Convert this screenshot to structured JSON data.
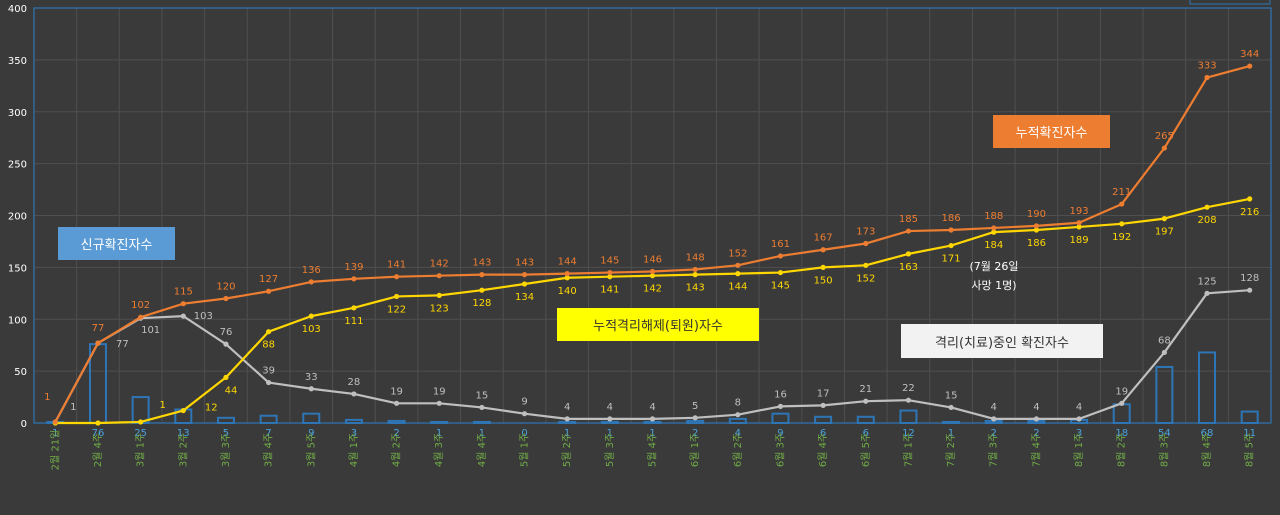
{
  "chart_data": {
    "type": "bar",
    "x_labels": [
      "2월 21일",
      "2월 4주",
      "3월 1주",
      "3월 2주",
      "3월 3주",
      "3월 4주",
      "3월 5주",
      "4월 1주",
      "4월 2주",
      "4월 3주",
      "4월 4주",
      "5월 1주",
      "5월 2주",
      "5월 3주",
      "5월 4주",
      "6월 1주",
      "6월 2주",
      "6월 3주",
      "6월 4주",
      "6월 5주",
      "7월 1주",
      "7월 2주",
      "7월 3주",
      "7월 4주",
      "8월 1주",
      "8월 2주",
      "8월 3주",
      "8월 4주",
      "8월 5주"
    ],
    "ylim": [
      0,
      400
    ],
    "yticks": [
      0,
      50,
      100,
      150,
      200,
      250,
      300,
      350,
      400
    ],
    "series": [
      {
        "name": "신규확진자수",
        "kind": "bar",
        "color": "#2e75b6",
        "values": [
          1,
          76,
          25,
          13,
          5,
          7,
          9,
          3,
          2,
          1,
          1,
          0,
          1,
          1,
          1,
          2,
          4,
          9,
          6,
          6,
          12,
          1,
          2,
          2,
          3,
          18,
          54,
          68,
          11
        ],
        "labels": [
          "1",
          "76",
          "25",
          "13",
          "5",
          "7",
          "9",
          "3",
          "2",
          "1",
          "1",
          "0",
          "1",
          "1",
          "1",
          "2",
          "4",
          "9",
          "6",
          "6",
          "12",
          "1",
          "2",
          "2",
          "3",
          "18",
          "54",
          "68",
          "11"
        ]
      },
      {
        "name": "누적확진자수",
        "kind": "line",
        "color": "#ed7d31",
        "values": [
          1,
          77,
          102,
          115,
          120,
          127,
          136,
          139,
          141,
          142,
          143,
          143,
          144,
          145,
          146,
          148,
          152,
          161,
          167,
          173,
          185,
          186,
          188,
          190,
          193,
          211,
          265,
          333,
          344
        ],
        "labels": [
          "1",
          "77",
          "102",
          "115",
          "120",
          "127",
          "136",
          "139",
          "141",
          "142",
          "143",
          "143",
          "144",
          "145",
          "146",
          "148",
          "152",
          "161",
          "167",
          "173",
          "185",
          "186",
          "188",
          "190",
          "193",
          "211",
          "265",
          "333",
          "344"
        ]
      },
      {
        "name": "누적격리해제(퇴원)자수",
        "kind": "line",
        "color": "#ffd700",
        "values": [
          0,
          0,
          1,
          12,
          44,
          88,
          103,
          111,
          122,
          123,
          128,
          134,
          140,
          141,
          142,
          143,
          144,
          145,
          150,
          152,
          163,
          171,
          184,
          186,
          189,
          192,
          197,
          208,
          216
        ],
        "labels": [
          "",
          "",
          "1",
          "12",
          "44",
          "88",
          "103",
          "111",
          "122",
          "123",
          "128",
          "134",
          "140",
          "141",
          "142",
          "143",
          "144",
          "145",
          "150",
          "152",
          "163",
          "171",
          "184",
          "186",
          "189",
          "192",
          "197",
          "208",
          "216"
        ]
      },
      {
        "name": "격리(치료)중인 확진자수",
        "kind": "line",
        "color": "#bfbfbf",
        "values": [
          1,
          77,
          101,
          103,
          76,
          39,
          33,
          28,
          19,
          19,
          15,
          9,
          4,
          4,
          4,
          5,
          8,
          16,
          17,
          21,
          22,
          15,
          4,
          4,
          4,
          19,
          68,
          125,
          128
        ],
        "labels": [
          "1",
          "77",
          "101",
          "103",
          "76",
          "39",
          "33",
          "28",
          "19",
          "19",
          "15",
          "9",
          "4",
          "4",
          "4",
          "5",
          "8",
          "16",
          "17",
          "21",
          "22",
          "15",
          "4",
          "4",
          "4",
          "19",
          "68",
          "125",
          "128"
        ]
      }
    ],
    "annotation": {
      "line1": "(7월 26일",
      "line2": "사망 1명)"
    },
    "grid": true
  },
  "callouts": {
    "new_cases": "신규확진자수",
    "cumulative_cases": "누적확진자수",
    "cumulative_released": "누적격리해제(퇴원)자수",
    "in_isolation": "격리(치료)중인 확진자수"
  },
  "colors": {
    "background": "#3a3a3a",
    "grid": "#4f4f4f",
    "axis_text": "#ffffff",
    "x_label_text": "#70ad47",
    "bar_label_text": "#4aa3df"
  }
}
